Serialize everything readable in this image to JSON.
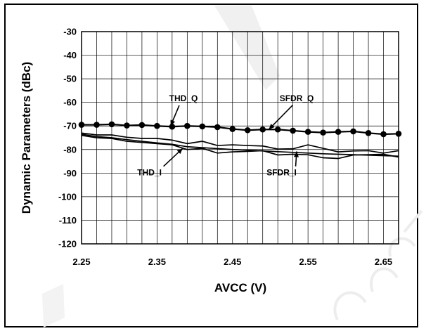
{
  "chart_data": {
    "type": "line",
    "xlabel": "AVCC (V)",
    "ylabel": "Dynamic Parameters (dBc)",
    "xlim": [
      2.25,
      2.67
    ],
    "ylim": [
      -120,
      -30
    ],
    "x_ticks": [
      "2.25",
      "2.35",
      "2.45",
      "2.55",
      "2.65"
    ],
    "y_ticks": [
      "-30",
      "-40",
      "-50",
      "-60",
      "-70",
      "-80",
      "-90",
      "-100",
      "-110",
      "-120"
    ],
    "grid": true,
    "x": [
      2.25,
      2.27,
      2.29,
      2.31,
      2.33,
      2.35,
      2.37,
      2.39,
      2.41,
      2.43,
      2.45,
      2.47,
      2.49,
      2.51,
      2.53,
      2.55,
      2.57,
      2.59,
      2.61,
      2.63,
      2.65,
      2.67
    ],
    "series": [
      {
        "name": "THD_Q",
        "marker": "circle",
        "values": [
          -69.5,
          -69.5,
          -69.3,
          -69.8,
          -69.6,
          -70.0,
          -70.3,
          -70.0,
          -70.2,
          -70.5,
          -71.3,
          -71.8,
          -71.5,
          -71.5,
          -72.0,
          -72.5,
          -72.8,
          -72.5,
          -72.3,
          -73.0,
          -73.5,
          -73.3
        ]
      },
      {
        "name": "SFDR_Q",
        "values": [
          -73.0,
          -73.8,
          -73.8,
          -74.8,
          -75.3,
          -75.3,
          -76.0,
          -77.5,
          -76.5,
          -78.3,
          -78.0,
          -78.3,
          -78.5,
          -79.8,
          -79.7,
          -78.0,
          -79.5,
          -81.0,
          -80.6,
          -80.5,
          -81.5,
          -80.5
        ]
      },
      {
        "name": "THD_I",
        "values": [
          -74.0,
          -75.0,
          -75.3,
          -76.5,
          -77.0,
          -77.5,
          -78.0,
          -80.0,
          -79.5,
          -81.5,
          -81.0,
          -80.8,
          -80.5,
          -82.3,
          -82.0,
          -82.2,
          -83.5,
          -83.8,
          -82.3,
          -82.2,
          -82.0,
          -83.2
        ]
      },
      {
        "name": "SFDR_I",
        "values": [
          -73.5,
          -74.5,
          -75.0,
          -75.8,
          -76.5,
          -77.2,
          -77.8,
          -78.8,
          -79.2,
          -79.6,
          -80.0,
          -80.3,
          -80.6,
          -80.9,
          -81.2,
          -81.5,
          -81.8,
          -82.0,
          -82.2,
          -82.4,
          -82.6,
          -82.8
        ]
      }
    ],
    "annotations": [
      {
        "text": "THD_Q",
        "x": 2.385,
        "y": -59.5
      },
      {
        "text": "SFDR_Q",
        "x": 2.535,
        "y": -59.5
      },
      {
        "text": "THD_I",
        "x": 2.34,
        "y": -91.0
      },
      {
        "text": "SFDR_I",
        "x": 2.515,
        "y": -91.0
      }
    ]
  },
  "colors": {
    "line": "#000000",
    "grid": "#000000",
    "background": "#ffffff"
  }
}
